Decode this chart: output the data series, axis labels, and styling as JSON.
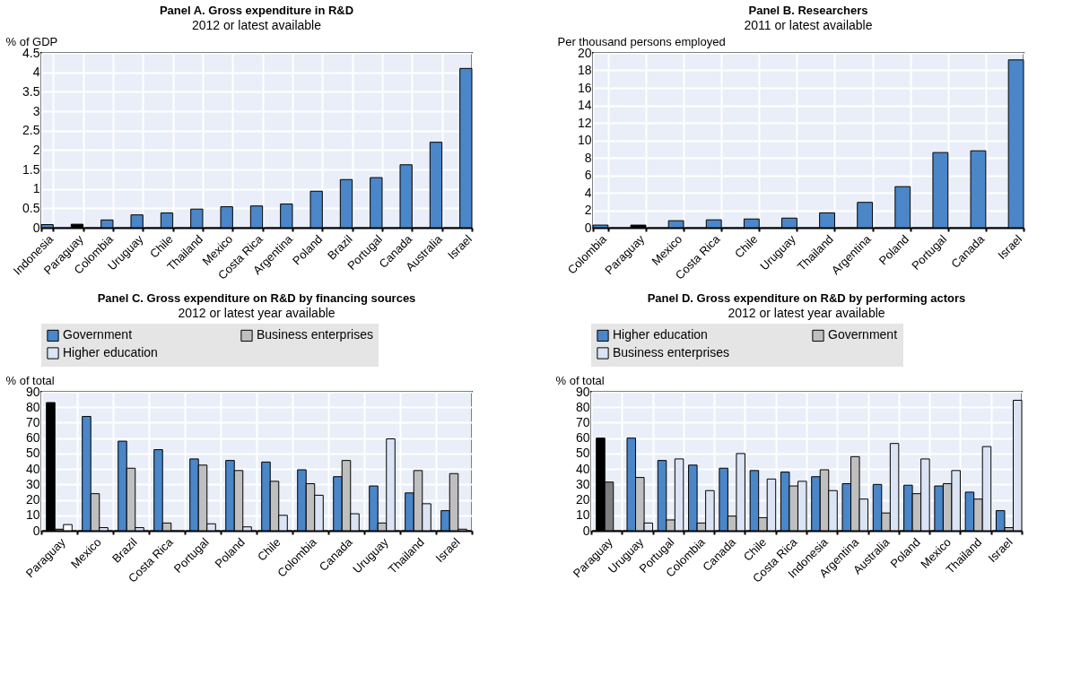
{
  "chart_data": [
    {
      "type": "bar",
      "title": "Panel A. Gross expenditure in R&D",
      "subtitle": "2012 or latest available",
      "ylabel": "% of GDP",
      "categories": [
        "Indonesia",
        "Paraguay",
        "Colombia",
        "Uruguay",
        "Chile",
        "Thailand",
        "Mexico",
        "Costa Rica",
        "Argentina",
        "Poland",
        "Brazil",
        "Portugal",
        "Canada",
        "Australia",
        "Israel"
      ],
      "values": [
        0.08,
        0.09,
        0.2,
        0.33,
        0.38,
        0.48,
        0.54,
        0.56,
        0.61,
        0.94,
        1.24,
        1.29,
        1.62,
        2.2,
        4.1
      ],
      "colors": [
        "#4a86c8",
        "#000000",
        "#4a86c8",
        "#4a86c8",
        "#4a86c8",
        "#4a86c8",
        "#4a86c8",
        "#4a86c8",
        "#4a86c8",
        "#4a86c8",
        "#4a86c8",
        "#4a86c8",
        "#4a86c8",
        "#4a86c8",
        "#4a86c8"
      ],
      "ylim": [
        0,
        4.5
      ],
      "yticks": [
        0,
        0.5,
        1,
        1.5,
        2,
        2.5,
        3,
        3.5,
        4,
        4.5
      ],
      "grid": true
    },
    {
      "type": "bar",
      "title": "Panel B. Researchers",
      "subtitle": "2011 or latest available",
      "ylabel": "Per thousand persons employed",
      "categories": [
        "Colombia",
        "Paraguay",
        "Mexico",
        "Costa Rica",
        "Chile",
        "Uruguay",
        "Thailand",
        "Argentina",
        "Poland",
        "Portugal",
        "Canada",
        "Israel"
      ],
      "values": [
        0.3,
        0.3,
        0.8,
        0.9,
        1.0,
        1.1,
        1.7,
        2.9,
        4.7,
        8.6,
        8.8,
        19.2
      ],
      "colors": [
        "#4a86c8",
        "#000000",
        "#4a86c8",
        "#4a86c8",
        "#4a86c8",
        "#4a86c8",
        "#4a86c8",
        "#4a86c8",
        "#4a86c8",
        "#4a86c8",
        "#4a86c8",
        "#4a86c8"
      ],
      "ylim": [
        0,
        20
      ],
      "yticks": [
        0,
        2,
        4,
        6,
        8,
        10,
        12,
        14,
        16,
        18,
        20
      ],
      "grid": true
    },
    {
      "type": "bar",
      "title": "Panel C. Gross expenditure on R&D by financing sources",
      "subtitle": "2012 or latest year available",
      "ylabel": "% of total",
      "categories": [
        "Paraguay",
        "Mexico",
        "Brazil",
        "Costa Rica",
        "Portugal",
        "Poland",
        "Chile",
        "Colombia",
        "Canada",
        "Uruguay",
        "Thailand",
        "Israel"
      ],
      "series": [
        {
          "name": "Government",
          "color": "#4a86c8",
          "colors": [
            "#000000",
            null,
            null,
            null,
            null,
            null,
            null,
            null,
            null,
            null,
            null,
            null
          ],
          "values": [
            83,
            74,
            58,
            52.5,
            46.5,
            45.5,
            44.5,
            39.5,
            35,
            29,
            24.5,
            13
          ]
        },
        {
          "name": "Business enterprises",
          "color": "#bfbfbf",
          "colors": [
            "#7f7f7f",
            null,
            null,
            null,
            null,
            null,
            null,
            null,
            null,
            null,
            null,
            null
          ],
          "values": [
            1,
            24,
            40.5,
            5,
            42.5,
            39,
            32,
            30.5,
            45.5,
            5,
            39,
            37
          ]
        },
        {
          "name": "Higher education",
          "color": "#dbe4f4",
          "colors": [
            "#ffffff",
            null,
            null,
            null,
            null,
            null,
            null,
            null,
            null,
            null,
            null,
            null
          ],
          "values": [
            4,
            2,
            2,
            null,
            4.5,
            2.5,
            10,
            23,
            11,
            59.5,
            17.5,
            1
          ]
        }
      ],
      "ylim": [
        0,
        90
      ],
      "yticks": [
        0,
        10,
        20,
        30,
        40,
        50,
        60,
        70,
        80,
        90
      ],
      "grid": true,
      "legend": "top"
    },
    {
      "type": "bar",
      "title": "Panel D. Gross expenditure on R&D by performing actors",
      "subtitle": "2012 or latest year available",
      "ylabel": "% of total",
      "categories": [
        "Paraguay",
        "Uruguay",
        "Portugal",
        "Colombia",
        "Canada",
        "Chile",
        "Costa Rica",
        "Indonesia",
        "Argentina",
        "Australia",
        "Poland",
        "Mexico",
        "Thailand",
        "Israel"
      ],
      "series": [
        {
          "name": "Higher education",
          "color": "#4a86c8",
          "colors": [
            "#000000",
            null,
            null,
            null,
            null,
            null,
            null,
            null,
            null,
            null,
            null,
            null,
            null,
            null
          ],
          "values": [
            60,
            60,
            45.5,
            42.5,
            40.5,
            39,
            38,
            35,
            30.5,
            30,
            29.5,
            29,
            25,
            13
          ]
        },
        {
          "name": "Government",
          "color": "#bfbfbf",
          "colors": [
            "#7f7f7f",
            null,
            null,
            null,
            null,
            null,
            null,
            null,
            null,
            null,
            null,
            null,
            null,
            null
          ],
          "values": [
            31.5,
            34.5,
            7,
            5,
            9.5,
            8.5,
            29,
            39.5,
            48,
            11.5,
            24,
            30.5,
            20.5,
            2
          ]
        },
        {
          "name": "Business enterprises",
          "color": "#dbe4f4",
          "values": [
            null,
            5,
            46.5,
            26,
            50,
            33.5,
            32,
            26,
            20.5,
            56.5,
            46.5,
            39,
            54.5,
            84.5
          ]
        }
      ],
      "ylim": [
        0,
        90
      ],
      "yticks": [
        0,
        10,
        20,
        30,
        40,
        50,
        60,
        70,
        80,
        90
      ],
      "grid": true,
      "legend": "top"
    }
  ]
}
